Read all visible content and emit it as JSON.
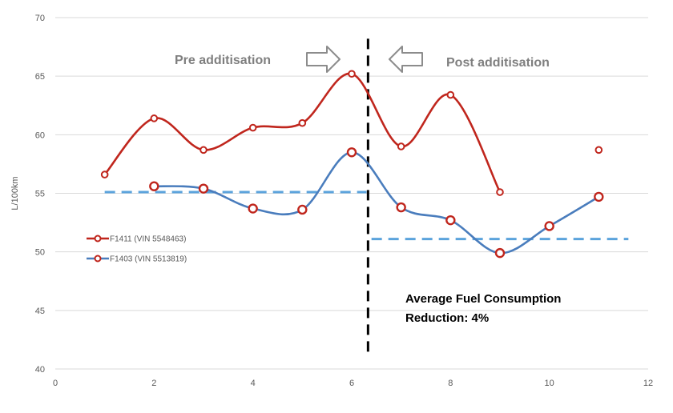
{
  "chart_data": {
    "type": "line",
    "title": "",
    "xlabel": "",
    "ylabel": "L/100km",
    "xlim": [
      0,
      12
    ],
    "ylim": [
      40,
      70
    ],
    "x_ticks": [
      "0",
      "2",
      "4",
      "6",
      "8",
      "10",
      "12"
    ],
    "y_ticks": [
      "40",
      "45",
      "50",
      "55",
      "60",
      "65",
      "70"
    ],
    "grid": "horizontal",
    "legend_position": "left",
    "series": [
      {
        "name": "F1411 (VIN 5548463)",
        "color": "#c0261d",
        "style": "smooth-line-hollow-markers",
        "segments": [
          [
            [
              1,
              56.6
            ],
            [
              2,
              61.4
            ],
            [
              3,
              58.7
            ],
            [
              4,
              60.6
            ],
            [
              5,
              61.0
            ],
            [
              6,
              65.2
            ],
            [
              7,
              59.0
            ],
            [
              8,
              63.4
            ],
            [
              9,
              55.1
            ]
          ],
          [
            [
              11,
              58.7
            ]
          ]
        ]
      },
      {
        "name": "F1403 (VIN 5513819)",
        "color": "#4a7dbd",
        "style": "smooth-line-hollow-markers",
        "segments": [
          [
            [
              2,
              55.6
            ],
            [
              3,
              55.4
            ],
            [
              4,
              53.7
            ],
            [
              5,
              53.6
            ],
            [
              6,
              58.5
            ],
            [
              7,
              53.8
            ],
            [
              8,
              52.7
            ],
            [
              9,
              49.9
            ],
            [
              10,
              52.2
            ],
            [
              11,
              54.7
            ]
          ]
        ]
      }
    ],
    "reference_lines": [
      {
        "kind": "average",
        "x_from": 1,
        "x_to": 6.3,
        "y": 55.1,
        "color": "#5ba3dc",
        "dash": true
      },
      {
        "kind": "average",
        "x_from": 6.4,
        "x_to": 11.6,
        "y": 51.1,
        "color": "#5ba3dc",
        "dash": true
      },
      {
        "kind": "divider",
        "x": 6.33,
        "y_from": 41.2,
        "y_to": 68.2,
        "color": "#000000",
        "dash": true
      }
    ],
    "annotations": {
      "pre_label": "Pre additisation",
      "post_label": "Post additisation",
      "note_line1": "Average Fuel Consumption",
      "note_line2": "Reduction: 4%",
      "arrow_right_icon": "right-arrow-icon",
      "arrow_left_icon": "left-arrow-icon"
    }
  }
}
